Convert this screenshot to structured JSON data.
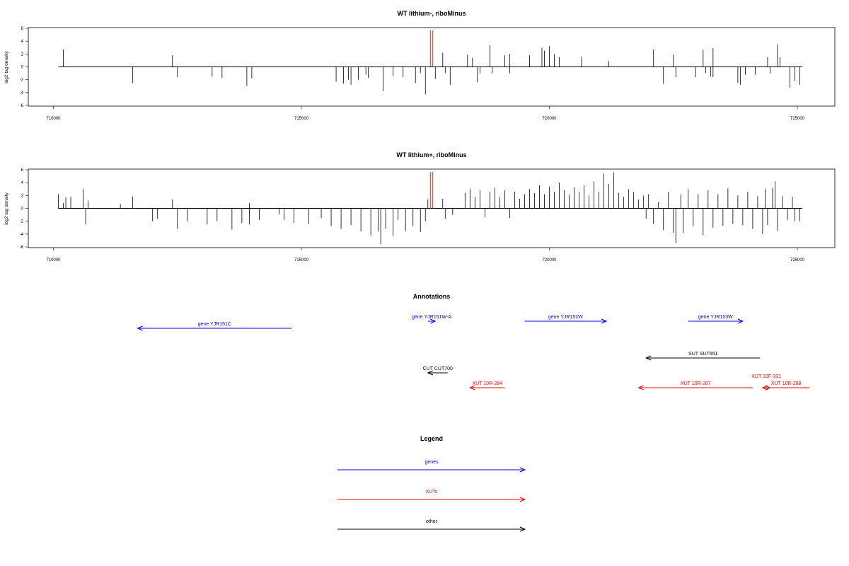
{
  "chart_data": [
    {
      "type": "bar",
      "title": "WT lithium-, riboMinus",
      "ylabel": "log2 tag density",
      "xlabel": "",
      "xlim": [
        710000,
        725000
      ],
      "ylim": [
        -6,
        6
      ],
      "xticks": [
        "710000",
        "715000",
        "720000",
        "725000"
      ],
      "yticks": [
        "6",
        "4",
        "2",
        "0",
        "-2",
        "-4",
        "-6"
      ],
      "baseline": [
        710100,
        725100
      ],
      "marker_lines": [
        717600,
        717650
      ],
      "marker_color": "#ff0000",
      "bars": [
        [
          710200,
          2.7
        ],
        [
          711600,
          -2.5
        ],
        [
          712400,
          1.8
        ],
        [
          712500,
          -1.6
        ],
        [
          713200,
          -1.5
        ],
        [
          713400,
          -1.7
        ],
        [
          713900,
          -3.0
        ],
        [
          714000,
          -1.8
        ],
        [
          715700,
          -2.3
        ],
        [
          715850,
          -2.6
        ],
        [
          715950,
          -2.0
        ],
        [
          716000,
          -2.8
        ],
        [
          716150,
          -2.0
        ],
        [
          716300,
          -1.2
        ],
        [
          716350,
          -1.7
        ],
        [
          716650,
          -3.8
        ],
        [
          716850,
          -1.4
        ],
        [
          717050,
          -1.6
        ],
        [
          717300,
          -2.5
        ],
        [
          717400,
          -1.0
        ],
        [
          717500,
          -4.3
        ],
        [
          717700,
          -1.9
        ],
        [
          717850,
          2.2
        ],
        [
          717900,
          -1.0
        ],
        [
          718000,
          -2.8
        ],
        [
          718350,
          1.9
        ],
        [
          718450,
          1.4
        ],
        [
          718550,
          -2.4
        ],
        [
          718600,
          -1.0
        ],
        [
          718800,
          3.4
        ],
        [
          718850,
          -1.0
        ],
        [
          719100,
          1.8
        ],
        [
          719200,
          2.0
        ],
        [
          719200,
          -1.0
        ],
        [
          719600,
          1.8
        ],
        [
          719850,
          3.0
        ],
        [
          719900,
          2.5
        ],
        [
          720000,
          3.2
        ],
        [
          720100,
          2.0
        ],
        [
          720200,
          1.5
        ],
        [
          720650,
          1.6
        ],
        [
          721200,
          0.9
        ],
        [
          722100,
          2.7
        ],
        [
          722300,
          -2.6
        ],
        [
          722500,
          1.9
        ],
        [
          722550,
          -1.6
        ],
        [
          722950,
          -1.6
        ],
        [
          723100,
          2.7
        ],
        [
          723150,
          -1.0
        ],
        [
          723250,
          -1.5
        ],
        [
          723300,
          2.9
        ],
        [
          723300,
          -1.6
        ],
        [
          723800,
          -2.5
        ],
        [
          723850,
          -2.8
        ],
        [
          723950,
          -1.2
        ],
        [
          724150,
          -1.2
        ],
        [
          724400,
          1.5
        ],
        [
          724450,
          -1.0
        ],
        [
          724600,
          3.5
        ],
        [
          724650,
          1.5
        ],
        [
          724850,
          -3.2
        ],
        [
          724950,
          -2.2
        ],
        [
          725050,
          -2.8
        ]
      ]
    },
    {
      "type": "bar",
      "title": "WT lithium+, riboMinus",
      "ylabel": "log2 tag density",
      "xlabel": "",
      "xlim": [
        710000,
        725000
      ],
      "ylim": [
        -6,
        6
      ],
      "xticks": [
        "710000",
        "715000",
        "720000",
        "725000"
      ],
      "yticks": [
        "6",
        "4",
        "2",
        "0",
        "-2",
        "-4",
        "-6"
      ],
      "baseline": [
        710100,
        725100
      ],
      "marker_lines": [
        717600,
        717650
      ],
      "marker_color": "#ff0000",
      "bars": [
        [
          710100,
          2.2
        ],
        [
          710200,
          0.8
        ],
        [
          710250,
          1.7
        ],
        [
          710350,
          1.8
        ],
        [
          710600,
          3.0
        ],
        [
          710650,
          -2.5
        ],
        [
          710700,
          1.2
        ],
        [
          711350,
          0.7
        ],
        [
          711600,
          1.8
        ],
        [
          712000,
          -2.0
        ],
        [
          712100,
          -1.6
        ],
        [
          712400,
          1.4
        ],
        [
          712500,
          -3.2
        ],
        [
          712700,
          -2.0
        ],
        [
          713100,
          -2.5
        ],
        [
          713300,
          -2.0
        ],
        [
          713600,
          -3.3
        ],
        [
          713800,
          -2.3
        ],
        [
          713950,
          0.8
        ],
        [
          713950,
          -2.5
        ],
        [
          714150,
          -1.8
        ],
        [
          714550,
          -0.9
        ],
        [
          714650,
          -1.8
        ],
        [
          714850,
          -2.3
        ],
        [
          715150,
          -2.4
        ],
        [
          715400,
          -1.5
        ],
        [
          715600,
          -2.8
        ],
        [
          715800,
          -3.2
        ],
        [
          716000,
          -2.6
        ],
        [
          716200,
          -3.6
        ],
        [
          716400,
          -4.2
        ],
        [
          716550,
          -3.6
        ],
        [
          716600,
          -5.6
        ],
        [
          716700,
          -3.2
        ],
        [
          716850,
          -4.3
        ],
        [
          716950,
          -1.8
        ],
        [
          717100,
          -3.5
        ],
        [
          717250,
          -2.8
        ],
        [
          717400,
          -3.7
        ],
        [
          717500,
          -2.0
        ],
        [
          717550,
          1.4
        ],
        [
          717850,
          1.5
        ],
        [
          717900,
          -1.6
        ],
        [
          718050,
          -1.0
        ],
        [
          718300,
          2.4
        ],
        [
          718400,
          3.0
        ],
        [
          718500,
          1.8
        ],
        [
          718600,
          2.8
        ],
        [
          718700,
          -1.4
        ],
        [
          718800,
          2.6
        ],
        [
          718900,
          3.2
        ],
        [
          719000,
          1.7
        ],
        [
          719100,
          2.8
        ],
        [
          719200,
          -1.5
        ],
        [
          719300,
          2.6
        ],
        [
          719400,
          1.5
        ],
        [
          719500,
          2.2
        ],
        [
          719600,
          3.0
        ],
        [
          719700,
          2.4
        ],
        [
          719800,
          3.6
        ],
        [
          719900,
          2.2
        ],
        [
          720000,
          3.4
        ],
        [
          720100,
          2.6
        ],
        [
          720200,
          4.0
        ],
        [
          720300,
          2.8
        ],
        [
          720400,
          2.1
        ],
        [
          720500,
          3.3
        ],
        [
          720600,
          2.6
        ],
        [
          720700,
          3.6
        ],
        [
          720800,
          2.0
        ],
        [
          720900,
          4.2
        ],
        [
          721000,
          2.6
        ],
        [
          721100,
          5.4
        ],
        [
          721200,
          3.8
        ],
        [
          721300,
          5.6
        ],
        [
          721400,
          2.4
        ],
        [
          721500,
          1.8
        ],
        [
          721600,
          3.0
        ],
        [
          721700,
          2.6
        ],
        [
          721800,
          1.4
        ],
        [
          721900,
          2.0
        ],
        [
          721950,
          -1.6
        ],
        [
          722000,
          2.2
        ],
        [
          722100,
          -2.4
        ],
        [
          722200,
          1.0
        ],
        [
          722300,
          -3.4
        ],
        [
          722400,
          2.6
        ],
        [
          722500,
          -3.8
        ],
        [
          722550,
          -5.4
        ],
        [
          722650,
          2.2
        ],
        [
          722700,
          -3.8
        ],
        [
          722800,
          3.0
        ],
        [
          722900,
          -2.8
        ],
        [
          723000,
          2.2
        ],
        [
          723100,
          -4.2
        ],
        [
          723200,
          2.8
        ],
        [
          723300,
          -3.0
        ],
        [
          723400,
          2.2
        ],
        [
          723500,
          -2.7
        ],
        [
          723600,
          3.1
        ],
        [
          723700,
          -2.4
        ],
        [
          723800,
          2.0
        ],
        [
          723900,
          -2.6
        ],
        [
          724000,
          2.6
        ],
        [
          724100,
          -3.2
        ],
        [
          724200,
          1.9
        ],
        [
          724300,
          -4.0
        ],
        [
          724350,
          3.0
        ],
        [
          724400,
          -2.6
        ],
        [
          724500,
          3.2
        ],
        [
          724550,
          4.2
        ],
        [
          724600,
          -3.5
        ],
        [
          724700,
          1.9
        ],
        [
          724800,
          -1.8
        ],
        [
          724900,
          1.8
        ],
        [
          724950,
          -2.0
        ],
        [
          725050,
          -2.0
        ]
      ]
    }
  ],
  "annotations": {
    "title": "Annotations",
    "features": [
      {
        "label": "gene YJR151C",
        "color": "#0000ff",
        "start": 714800,
        "end": 711700,
        "row": 0
      },
      {
        "label": "gene YJR151W-A",
        "color": "#0000ff",
        "start": 717550,
        "end": 717700,
        "row": 1
      },
      {
        "label": "gene YJR152W",
        "color": "#0000ff",
        "start": 719500,
        "end": 721150,
        "row": 1
      },
      {
        "label": "gene YJR153W",
        "color": "#0000ff",
        "start": 722800,
        "end": 723900,
        "row": 1
      },
      {
        "label": "SUT SUT651",
        "color": "#000000",
        "start": 724250,
        "end": 721950,
        "row": 2
      },
      {
        "label": "CUT CUT700",
        "color": "#000000",
        "start": 717950,
        "end": 717550,
        "row": 3
      },
      {
        "label": "XUT 10R-284",
        "color": "#ff0000",
        "start": 719100,
        "end": 718400,
        "row": 4
      },
      {
        "label": "XUT 10R-287",
        "color": "#ff0000",
        "start": 724100,
        "end": 721800,
        "row": 4
      },
      {
        "label": "XUT 10F-331",
        "color": "#ff0000",
        "start": 724300,
        "end": 724450,
        "row": 5
      },
      {
        "label": "XUT 10R-288",
        "color": "#ff0000",
        "start": 725250,
        "end": 724300,
        "row": 4
      }
    ]
  },
  "legend": {
    "title": "Legend",
    "items": [
      {
        "label": "genes",
        "color": "#0000ff"
      },
      {
        "label": "XUTs",
        "color": "#ff0000"
      },
      {
        "label": "other",
        "color": "#000000"
      }
    ]
  }
}
